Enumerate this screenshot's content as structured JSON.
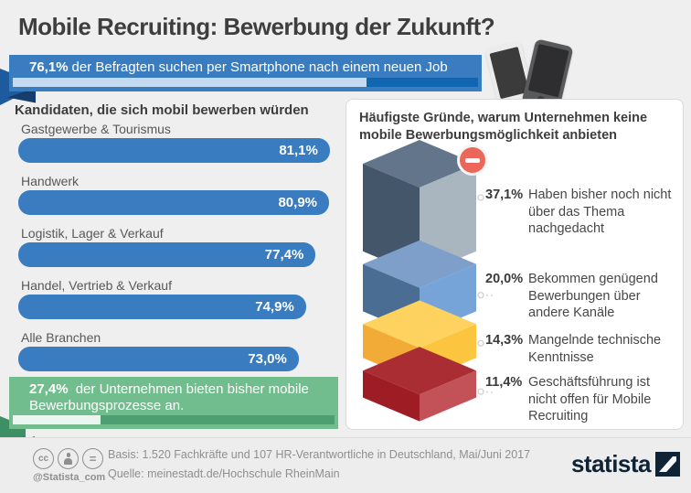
{
  "page": {
    "title": "Mobile Recruiting: Bewerbung der Zukunft?"
  },
  "top_banner": {
    "percent": "76,1%",
    "text": "der Befragten suchen per Smartphone nach einem neuen Job",
    "progress_percent": 76.1,
    "bar_color": "#3a7cc0"
  },
  "left_chart": {
    "title": "Kandidaten, die sich mobil bewerben würden",
    "bar_color": "#3a7cc0",
    "max_scale": 84.7,
    "items": [
      {
        "label": "Gastgewerbe & Tourismus",
        "value": 81.1,
        "display": "81,1%"
      },
      {
        "label": "Handwerk",
        "value": 80.9,
        "display": "80,9%"
      },
      {
        "label": "Logistik, Lager & Verkauf",
        "value": 77.4,
        "display": "77,4%"
      },
      {
        "label": "Handel, Vertrieb & Verkauf",
        "value": 74.9,
        "display": "74,9%"
      },
      {
        "label": "Alle Branchen",
        "value": 73.0,
        "display": "73,0%"
      }
    ]
  },
  "green_banner": {
    "percent": "27,4%",
    "text": "der Unternehmen bieten bisher mobile Bewerbungsprozesse an.",
    "progress_percent": 27.4,
    "bar_color": "#72bd8e"
  },
  "right_panel": {
    "title": "Häufigste Gründe, warum Unternehmen keine mobile Bewerbungsmöglichkeit anbieten",
    "minus_icon": "minus-in-red-circle",
    "minus_color": "#ec675a",
    "items": [
      {
        "percent": "37,1%",
        "value": 37.1,
        "text": "Haben bisher noch nicht über das Thema nachgedacht",
        "color_top": "#62758a",
        "color_left": "#44566a",
        "color_right": "#a9b5bf"
      },
      {
        "percent": "20,0%",
        "value": 20.0,
        "text": "Bekommen genügend Bewerbungen über andere Kanäle",
        "color_top": "#7d9fc9",
        "color_left": "#4a6d94",
        "color_right": "#76a3d8"
      },
      {
        "percent": "14,3%",
        "value": 14.3,
        "text": "Mangelnde technische Kenntnisse",
        "color_top": "#fdd25f",
        "color_left": "#f2ab37",
        "color_right": "#fcc53f"
      },
      {
        "percent": "11,4%",
        "value": 11.4,
        "text": "Geschäftsführung ist nicht offen für Mobile Recruiting",
        "color_top": "#ab2d34",
        "color_left": "#9e1d24",
        "color_right": "#c25158"
      }
    ]
  },
  "footer": {
    "handle": "@Statista_com",
    "cc_icons": [
      "cc-icon",
      "attribution-person-icon",
      "equal-icon"
    ],
    "cc_label": "cc",
    "eq_label": "=",
    "basis": "Basis: 1.520 Fachkräfte und 107 HR-Verantwortliche in Deutschland, Mai/Juni 2017",
    "source": "Quelle: meinestadt.de/Hochschule RheinMain",
    "brand": "statista",
    "brand_color": "#0e2336"
  },
  "chart_data": [
    {
      "type": "bar",
      "orientation": "horizontal",
      "title": "Kandidaten, die sich mobil bewerben würden",
      "categories": [
        "Gastgewerbe & Tourismus",
        "Handwerk",
        "Logistik, Lager & Verkauf",
        "Handel, Vertrieb & Verkauf",
        "Alle Branchen"
      ],
      "values": [
        81.1,
        80.9,
        77.4,
        74.9,
        73.0
      ],
      "unit": "%",
      "xlim": [
        0,
        85
      ],
      "bar_color": "#3a7cc0",
      "data_labels": [
        "81,1%",
        "80,9%",
        "77,4%",
        "74,9%",
        "73,0%"
      ]
    },
    {
      "type": "bar",
      "style": "3d-cube-stack",
      "title": "Häufigste Gründe, warum Unternehmen keine mobile Bewerbungsmöglichkeit anbieten",
      "categories": [
        "Haben bisher noch nicht über das Thema nachgedacht",
        "Bekommen genügend Bewerbungen über andere Kanäle",
        "Mangelnde technische Kenntnisse",
        "Geschäftsführung ist nicht offen für Mobile Recruiting"
      ],
      "values": [
        37.1,
        20.0,
        14.3,
        11.4
      ],
      "unit": "%",
      "colors": [
        "#8b99a6",
        "#6f9cd0",
        "#fbc23e",
        "#b03a43"
      ]
    },
    {
      "type": "kpi",
      "items": [
        {
          "label": "der Befragten suchen per Smartphone nach einem neuen Job",
          "value": 76.1,
          "unit": "%"
        },
        {
          "label": "der Unternehmen bieten bisher mobile Bewerbungsprozesse an.",
          "value": 27.4,
          "unit": "%"
        }
      ]
    }
  ]
}
